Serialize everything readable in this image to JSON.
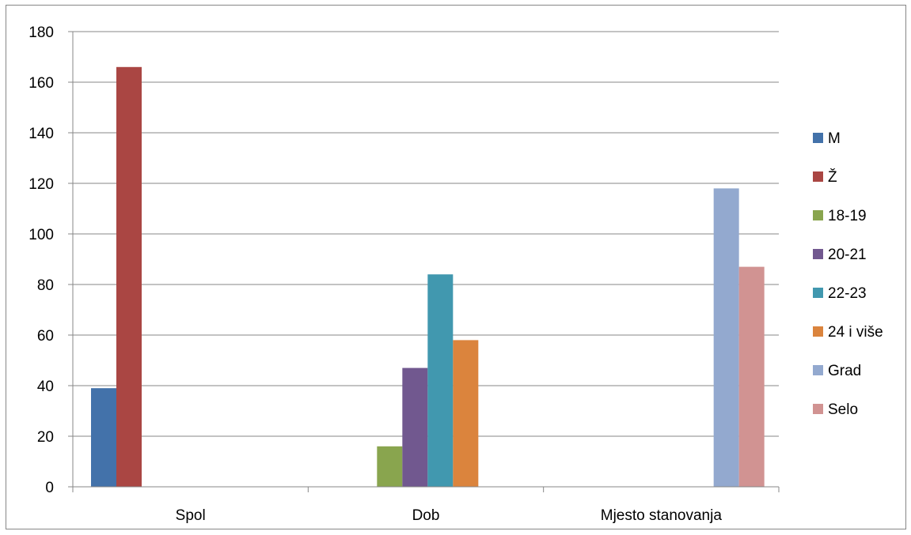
{
  "chart_data": {
    "type": "bar",
    "title": "",
    "xlabel": "",
    "ylabel": "",
    "categories": [
      "Spol",
      "Dob",
      "Mjesto stanovanja"
    ],
    "ylim": [
      0,
      180
    ],
    "yticks": [
      0,
      20,
      40,
      60,
      80,
      100,
      120,
      140,
      160,
      180
    ],
    "grid": true,
    "legend_position": "right",
    "series": [
      {
        "name": "M",
        "color": "#4372AA",
        "values": [
          39,
          null,
          null
        ]
      },
      {
        "name": "Ž",
        "color": "#AA4643",
        "values": [
          166,
          null,
          null
        ]
      },
      {
        "name": "18-19",
        "color": "#89A54E",
        "values": [
          null,
          16,
          null
        ]
      },
      {
        "name": "20-21",
        "color": "#71588F",
        "values": [
          null,
          47,
          null
        ]
      },
      {
        "name": "22-23",
        "color": "#4198AF",
        "values": [
          null,
          84,
          null
        ]
      },
      {
        "name": "24 i više",
        "color": "#DB843D",
        "values": [
          null,
          58,
          null
        ]
      },
      {
        "name": "Grad",
        "color": "#93A9CF",
        "values": [
          null,
          null,
          118
        ]
      },
      {
        "name": "Selo",
        "color": "#D19392",
        "values": [
          null,
          null,
          87
        ]
      }
    ]
  }
}
